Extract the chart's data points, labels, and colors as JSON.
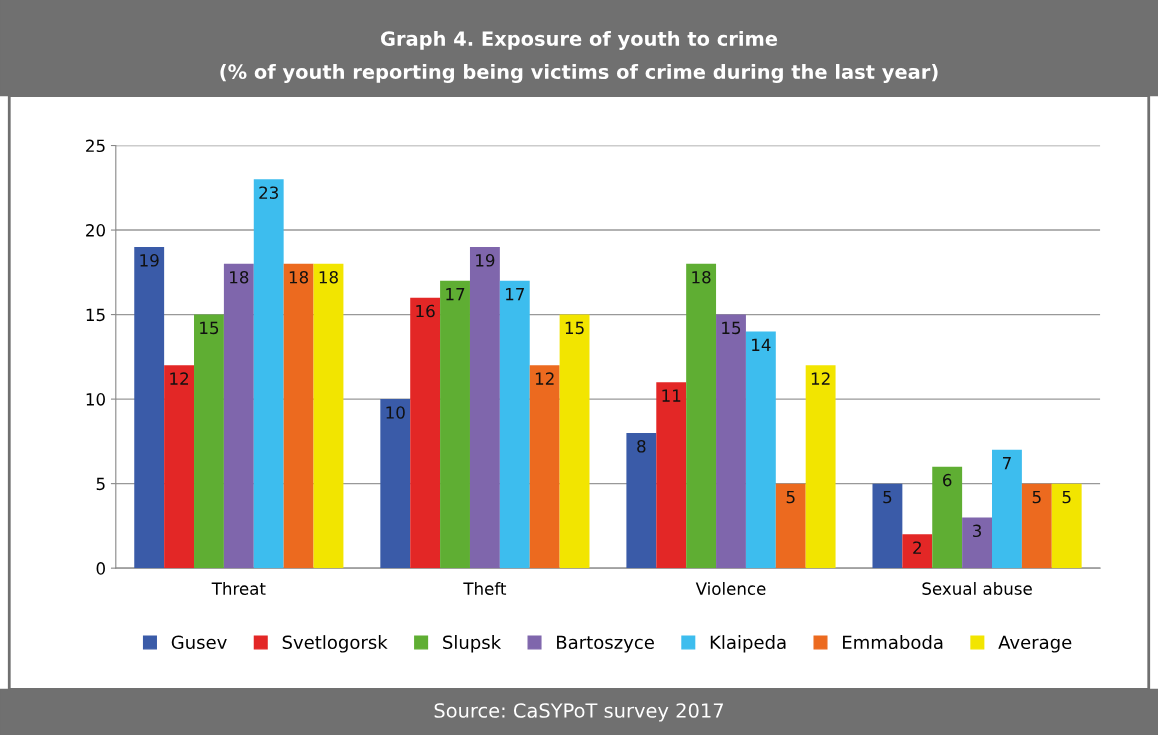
{
  "chart_data": {
    "type": "bar",
    "title": "Graph 4. Exposure of youth to crime",
    "subtitle": "(% of youth reporting being victims of crime during the last year)",
    "categories": [
      "Threat",
      "Theft",
      "Violence",
      "Sexual abuse"
    ],
    "series": [
      {
        "name": "Gusev",
        "color": "#3a5ba8",
        "values": [
          19,
          10,
          8,
          5
        ]
      },
      {
        "name": "Svetlogorsk",
        "color": "#e32726",
        "values": [
          12,
          16,
          11,
          2
        ]
      },
      {
        "name": "Slupsk",
        "color": "#5fae33",
        "values": [
          15,
          17,
          18,
          6
        ]
      },
      {
        "name": "Bartoszyce",
        "color": "#7f66ac",
        "values": [
          18,
          19,
          15,
          3
        ]
      },
      {
        "name": "Klaipeda",
        "color": "#3dbdee",
        "values": [
          23,
          17,
          14,
          7
        ]
      },
      {
        "name": "Emmaboda",
        "color": "#ec6a1f",
        "values": [
          18,
          12,
          5,
          5
        ]
      },
      {
        "name": "Average",
        "color": "#f2e500",
        "values": [
          18,
          15,
          12,
          5
        ]
      }
    ],
    "ylim": [
      0,
      25
    ],
    "yticks": [
      0,
      5,
      10,
      15,
      20,
      25
    ],
    "grid": "y",
    "legend": "bottom",
    "data_labels": true,
    "annotations": [
      "Source: CaSYPoT survey 2017"
    ]
  }
}
